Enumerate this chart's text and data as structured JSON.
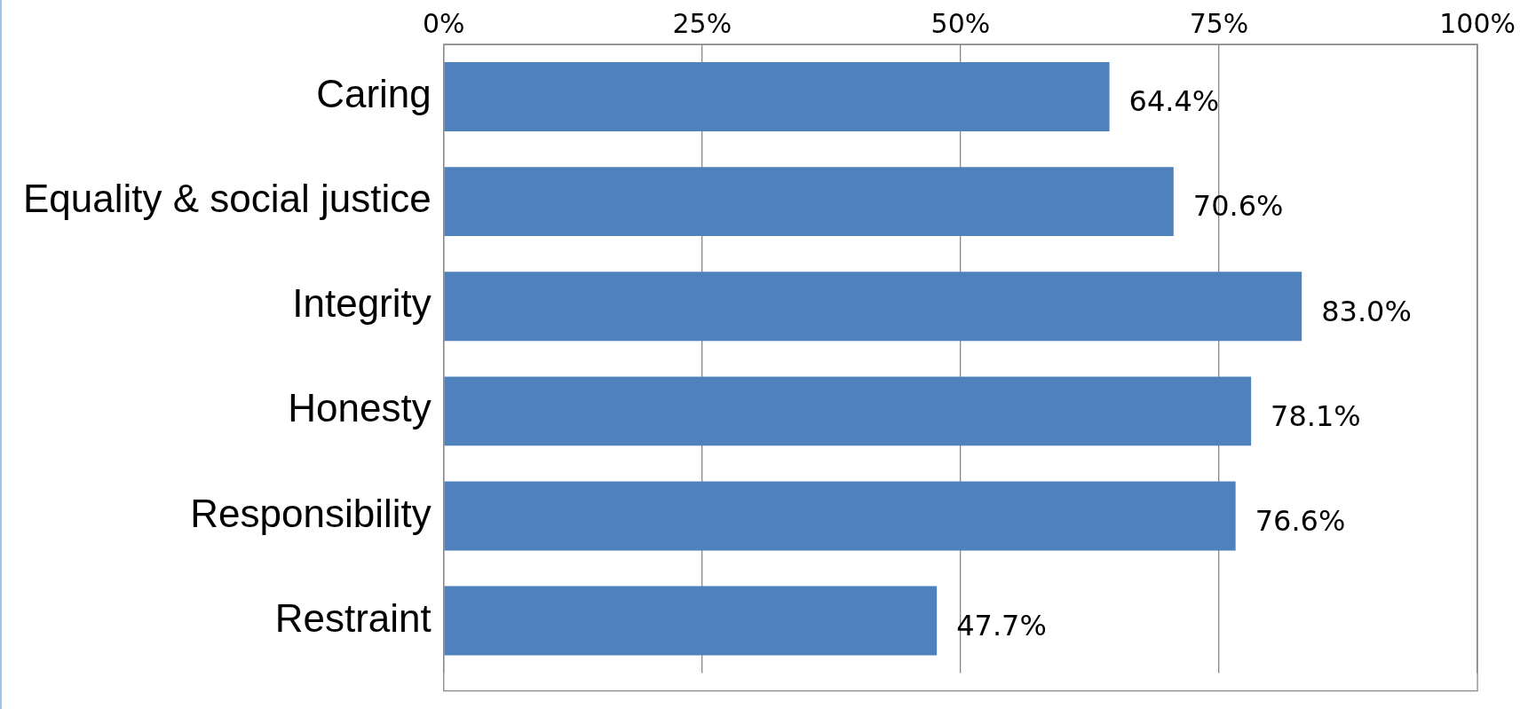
{
  "chart_data": {
    "type": "bar",
    "orientation": "horizontal",
    "categories": [
      "Caring",
      "Equality & social justice",
      "Integrity",
      "Honesty",
      "Responsibility",
      "Restraint"
    ],
    "values": [
      64.4,
      70.6,
      83.0,
      78.1,
      76.6,
      47.7
    ],
    "value_labels": [
      "64.4%",
      "70.6%",
      "83.0%",
      "78.1%",
      "76.6%",
      "47.7%"
    ],
    "color": "#4f81bd",
    "xlim": [
      0,
      100
    ],
    "xticks": [
      {
        "value": 0,
        "label": "0%"
      },
      {
        "value": 25,
        "label": "25%"
      },
      {
        "value": 50,
        "label": "50%"
      },
      {
        "value": 75,
        "label": "75%"
      },
      {
        "value": 100,
        "label": "100%"
      }
    ],
    "grid": "x"
  }
}
